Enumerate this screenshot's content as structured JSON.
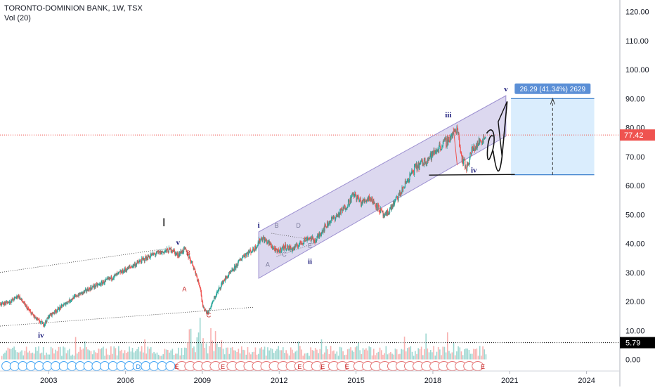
{
  "header": {
    "title": "TORONTO-DOMINION BANK, 1W, TSX",
    "indicator": "Vol (20)"
  },
  "colors": {
    "up": "#26a69a",
    "down": "#ef5350",
    "channel_fill": "#9c8fd0",
    "price_line": "#ef5350",
    "target_box": "#bbdefb",
    "measure_label_bg": "#5b8fd6",
    "wave_label": "#1a1a7a"
  },
  "price_badge": "77.42",
  "volume_badge": "5.79",
  "measure_label": "26.29 (41.34%) 2629",
  "wave_labels": {
    "big_I": "I",
    "iv_2003": "iv",
    "v_2008": "v",
    "A_2008": "A",
    "B_2008": "B",
    "C_2009": "C",
    "i_2011": "i",
    "A_2012": "A",
    "B_2012": "B",
    "C_2012": "C",
    "D_2013": "D",
    "E_2013": "E",
    "ii_2013": "ii",
    "iii_2018": "iii",
    "iv_2019": "iv",
    "v_2021": "v"
  },
  "event_markers": [
    "D",
    "E",
    "E",
    "E",
    "E",
    "E",
    "E"
  ],
  "chart_data": {
    "type": "line",
    "title": "TORONTO-DOMINION BANK, 1W, TSX",
    "x_ticks": [
      "2003",
      "2006",
      "2009",
      "2012",
      "2015",
      "2018",
      "2021",
      "2024"
    ],
    "y_ticks": [
      "0.00",
      "10.00",
      "20.00",
      "30.00",
      "40.00",
      "50.00",
      "60.00",
      "70.00",
      "80.00",
      "90.00",
      "100.00",
      "110.00",
      "120.00"
    ],
    "ylim": [
      -4,
      124
    ],
    "xlim": [
      2001.1,
      2025.3
    ],
    "series": [
      {
        "x": [
          2001.1,
          2001.5,
          2001.8,
          2002.2,
          2002.5,
          2002.8,
          2003.0,
          2003.3,
          2003.6,
          2003.9,
          2004.3,
          2004.7,
          2005.0,
          2005.4,
          2005.8,
          2006.2,
          2006.6,
          2007.0,
          2007.4,
          2007.8,
          2008.0,
          2008.3,
          2008.6,
          2008.9,
          2009.0,
          2009.2,
          2009.5,
          2009.8,
          2010.2,
          2010.6,
          2011.0,
          2011.3,
          2011.6,
          2011.9,
          2012.2,
          2012.5,
          2012.8,
          2013.1,
          2013.4,
          2013.7,
          2014.0,
          2014.3,
          2014.6,
          2014.9,
          2015.2,
          2015.5,
          2015.8,
          2016.1,
          2016.4,
          2016.7,
          2017.0,
          2017.3,
          2017.6,
          2017.9,
          2018.2,
          2018.5,
          2018.8,
          2018.95,
          2019.1,
          2019.3,
          2019.5,
          2019.7,
          2019.9,
          2020.05,
          2020.1
        ],
        "values": [
          19,
          20,
          22,
          17,
          14,
          12,
          15,
          17,
          19,
          21,
          23,
          25,
          26,
          28,
          30,
          32,
          34,
          36,
          37,
          38,
          36,
          38,
          33,
          25,
          18,
          16,
          22,
          27,
          31,
          36,
          38,
          42,
          40,
          37,
          39,
          38,
          40,
          42,
          41,
          45,
          48,
          50,
          53,
          57,
          54,
          56,
          53,
          49,
          53,
          57,
          62,
          66,
          68,
          70,
          73,
          75,
          78,
          80,
          70,
          66,
          72,
          74,
          76,
          77,
          77.42
        ]
      }
    ],
    "projection": {
      "x": [
        2020.1,
        2020.35,
        2020.5,
        2020.62,
        2020.9
      ],
      "values": [
        77.4,
        72,
        65,
        68,
        89
      ]
    }
  }
}
